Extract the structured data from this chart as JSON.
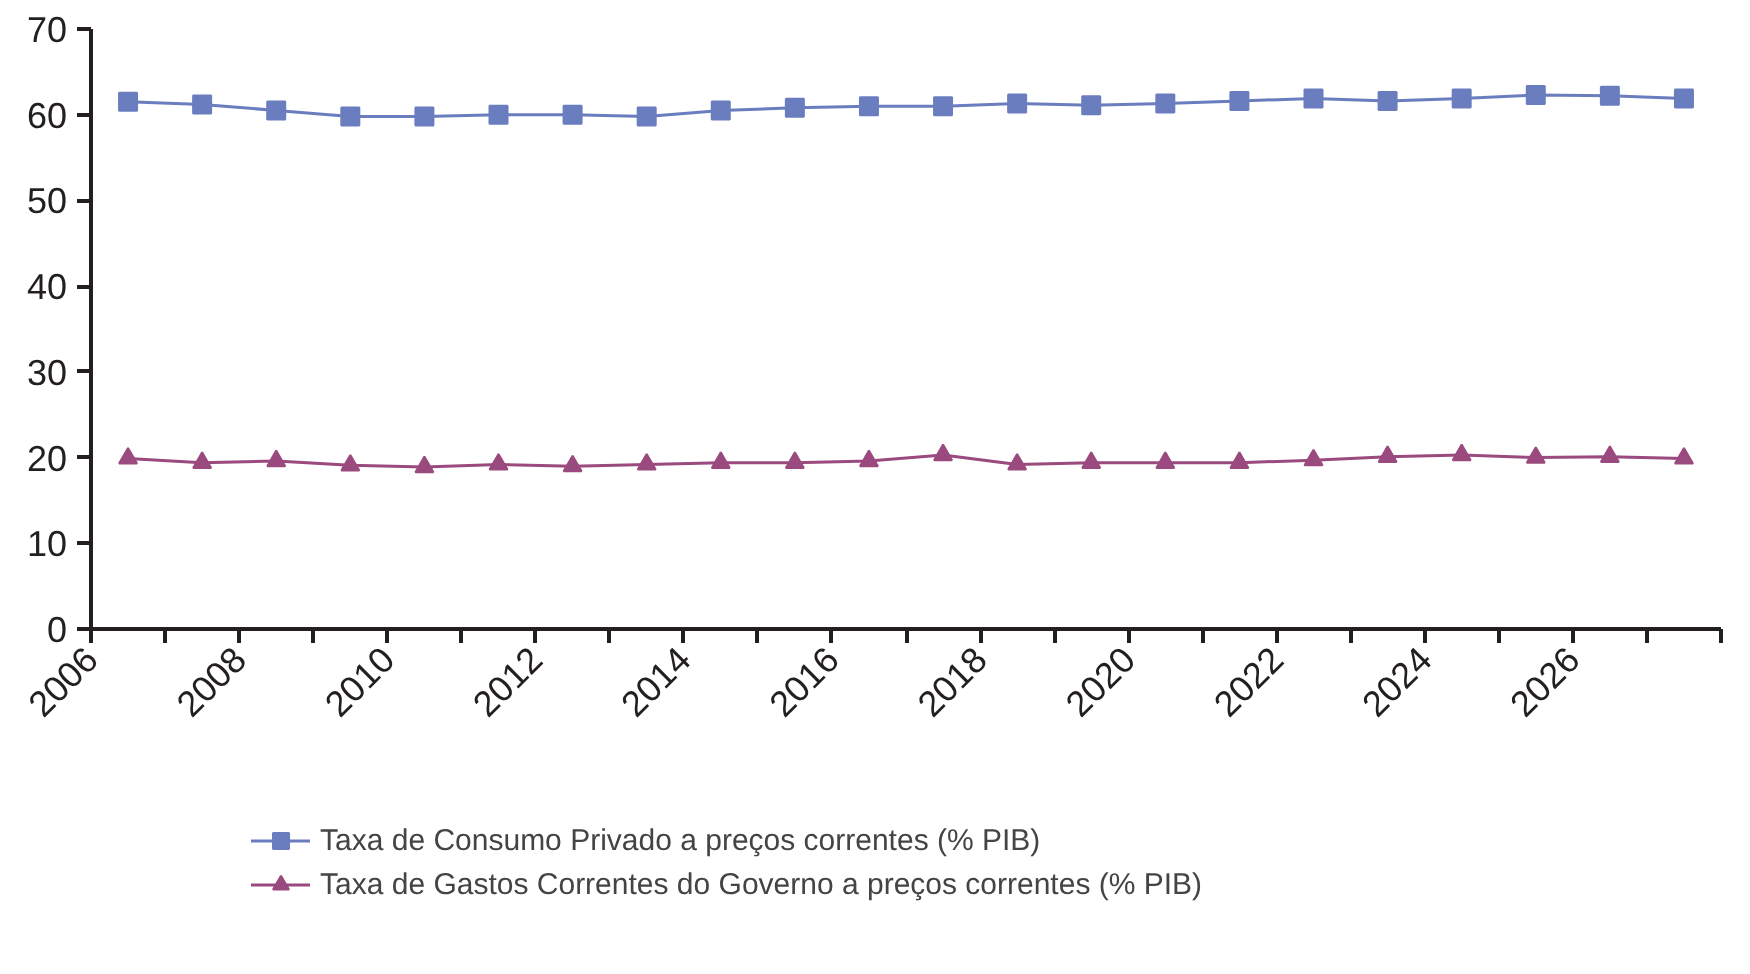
{
  "chart_data": {
    "type": "line",
    "x": [
      2006.5,
      2007.5,
      2008.5,
      2009.5,
      2010.5,
      2011.5,
      2012.5,
      2013.5,
      2014.5,
      2015.5,
      2016.5,
      2017.5,
      2018.5,
      2019.5,
      2020.5,
      2021.5,
      2022.5,
      2023.5,
      2024.5,
      2025.5,
      2026.5,
      2027.5
    ],
    "series": [
      {
        "name": "Taxa de Consumo Privado a preços correntes (% PIB)",
        "color": "#6a7dbf",
        "marker": "square",
        "values": [
          61.5,
          61.2,
          60.5,
          59.8,
          59.8,
          60,
          60,
          59.8,
          60.5,
          60.8,
          61,
          61,
          61.3,
          61.1,
          61.3,
          61.6,
          61.9,
          61.6,
          61.9,
          62.3,
          62.2,
          61.9
        ]
      },
      {
        "name": "Taxa de Gastos Correntes do Governo a preços correntes (% PIB)",
        "color": "#9a4a7e",
        "marker": "triangle",
        "values": [
          19.9,
          19.4,
          19.6,
          19.1,
          18.9,
          19.2,
          19,
          19.2,
          19.4,
          19.4,
          19.6,
          20.3,
          19.2,
          19.4,
          19.4,
          19.4,
          19.7,
          20.1,
          20.3,
          20,
          20.1,
          19.9
        ]
      }
    ],
    "xlim": [
      2006,
      2028
    ],
    "xticks": [
      2006,
      {
        "value": 2007,
        "label": null
      },
      2008,
      {
        "value": 2009,
        "label": null
      },
      2010,
      {
        "value": 2011,
        "label": null
      },
      2012,
      {
        "value": 2013,
        "label": null
      },
      2014,
      {
        "value": 2015,
        "label": null
      },
      2016,
      {
        "value": 2017,
        "label": null
      },
      2018,
      {
        "value": 2019,
        "label": null
      },
      2020,
      {
        "value": 2021,
        "label": null
      },
      2022,
      {
        "value": 2023,
        "label": null
      },
      2024,
      {
        "value": 2025,
        "label": null
      },
      2026,
      {
        "value": 2027,
        "label": null
      },
      {
        "value": 2028,
        "label": null
      }
    ],
    "ylim": [
      0,
      70
    ],
    "yticks": [
      0,
      10,
      20,
      30,
      40,
      50,
      60,
      70
    ],
    "grid": false,
    "legend": "bottom",
    "line_style": "solid"
  }
}
